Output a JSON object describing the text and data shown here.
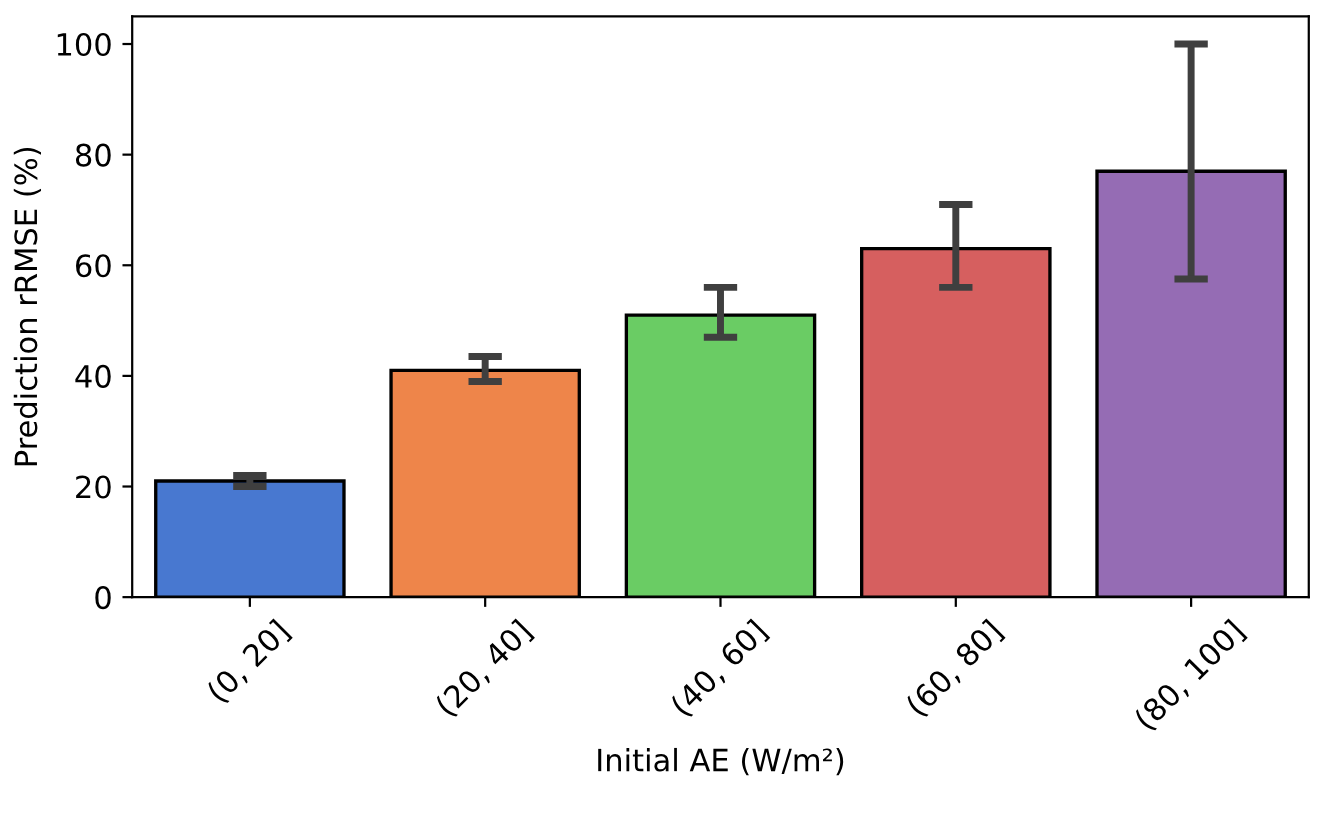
{
  "chart_data": {
    "type": "bar",
    "xlabel": "Initial AE (W/m²)",
    "ylabel": "Prediction rRMSE (%)",
    "categories": [
      "(0, 20]",
      "(20, 40]",
      "(40, 60]",
      "(60, 80]",
      "(80, 100]"
    ],
    "values": [
      21,
      41,
      51,
      63,
      77
    ],
    "errors": [
      [
        20,
        22
      ],
      [
        39,
        43.5
      ],
      [
        47,
        56
      ],
      [
        56,
        71
      ],
      [
        57.5,
        100
      ]
    ],
    "colors": [
      "#4878d0",
      "#ee854a",
      "#6acc64",
      "#d65f5f",
      "#956cb4"
    ],
    "ylim": [
      0,
      105
    ],
    "yticks": [
      0,
      20,
      40,
      60,
      80,
      100
    ],
    "grid": false
  }
}
